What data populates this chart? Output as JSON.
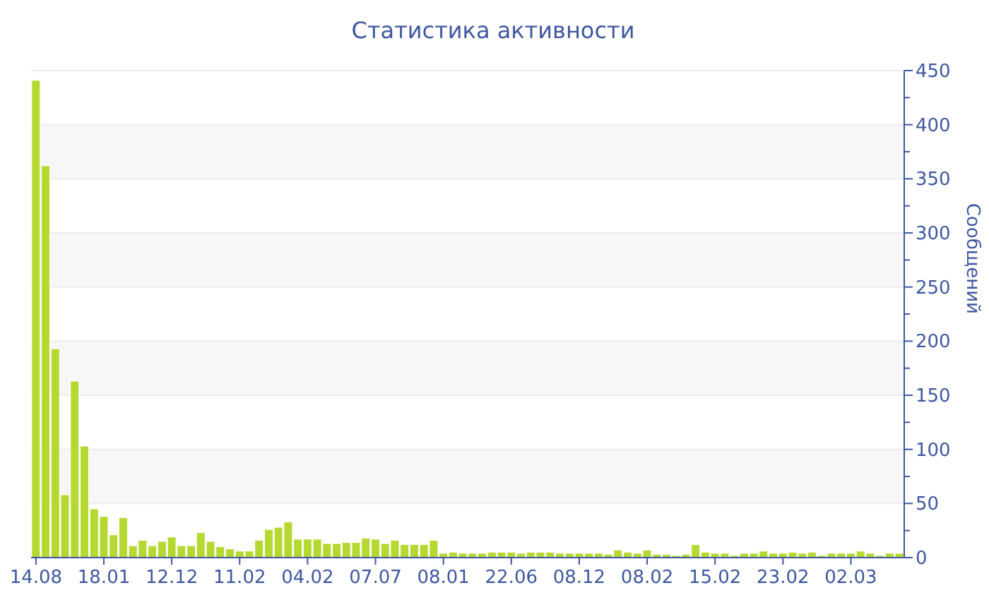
{
  "chart_data": {
    "type": "bar",
    "title": "Статистика активности",
    "ylabel": "Сообщений",
    "categories": [
      "14.08",
      null,
      null,
      null,
      null,
      null,
      null,
      "18.01",
      null,
      null,
      null,
      null,
      null,
      null,
      "12.12",
      null,
      null,
      null,
      null,
      null,
      null,
      "11.02",
      null,
      null,
      null,
      null,
      null,
      null,
      "04.02",
      null,
      null,
      null,
      null,
      null,
      null,
      "07.07",
      null,
      null,
      null,
      null,
      null,
      null,
      "08.01",
      null,
      null,
      null,
      null,
      null,
      null,
      "22.06",
      null,
      null,
      null,
      null,
      null,
      null,
      "08.12",
      null,
      null,
      null,
      null,
      null,
      null,
      "08.02",
      null,
      null,
      null,
      null,
      null,
      null,
      "15.02",
      null,
      null,
      null,
      null,
      null,
      null,
      "23.02",
      null,
      null,
      null,
      null,
      null,
      null,
      "02.03",
      null,
      null,
      null,
      null,
      null
    ],
    "values": [
      441,
      362,
      193,
      58,
      163,
      103,
      45,
      38,
      21,
      37,
      11,
      16,
      11,
      15,
      19,
      11,
      11,
      23,
      15,
      10,
      8,
      6,
      6,
      16,
      26,
      28,
      33,
      17,
      17,
      17,
      13,
      13,
      14,
      14,
      18,
      17,
      13,
      16,
      12,
      12,
      12,
      16,
      4,
      5,
      4,
      4,
      4,
      5,
      5,
      5,
      4,
      5,
      5,
      5,
      4,
      4,
      4,
      4,
      4,
      3,
      7,
      5,
      4,
      7,
      3,
      3,
      2,
      3,
      12,
      5,
      4,
      4,
      2,
      4,
      4,
      6,
      4,
      4,
      5,
      4,
      5,
      2,
      4,
      4,
      4,
      6,
      4,
      2,
      4,
      4
    ],
    "color": "#b5d930",
    "ylim": [
      0,
      450
    ],
    "yticks": [
      0,
      {
        "value": 25,
        "label": null
      },
      50,
      {
        "value": 75,
        "label": null
      },
      100,
      {
        "value": 125,
        "label": null
      },
      150,
      {
        "value": 175,
        "label": null
      },
      200,
      {
        "value": 225,
        "label": null
      },
      250,
      {
        "value": 275,
        "label": null
      },
      300,
      {
        "value": 325,
        "label": null
      },
      350,
      {
        "value": 375,
        "label": null
      },
      400,
      {
        "value": 425,
        "label": null
      },
      450
    ],
    "grid": "y",
    "legend": false
  }
}
